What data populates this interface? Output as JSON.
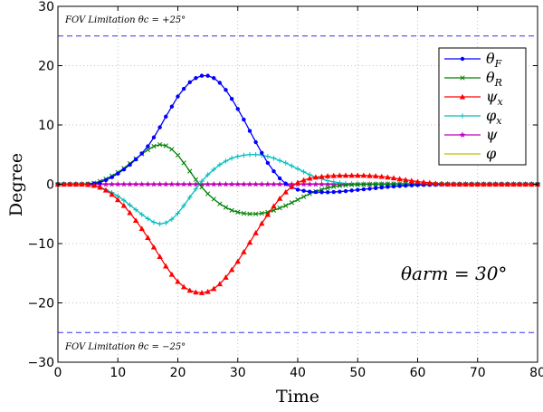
{
  "chart_data": {
    "type": "line",
    "xlabel": "Time",
    "ylabel": "Degree",
    "xlim": [
      0,
      80
    ],
    "ylim": [
      -30,
      30
    ],
    "x_ticks": [
      0,
      10,
      20,
      30,
      40,
      50,
      60,
      70,
      80
    ],
    "y_ticks": [
      -30,
      -20,
      -10,
      0,
      10,
      20,
      30
    ],
    "y_tick_labels": [
      "−30",
      "−20",
      "−10",
      "0",
      "10",
      "20",
      "30"
    ],
    "grid": true,
    "legend_position": "top-right",
    "annotations": {
      "fov_upper": "FOV Limitation θc = +25°",
      "fov_lower": "FOV Limitation θc = −25°",
      "theta_arm": "θarm = 30°"
    },
    "fov_limits": [
      25,
      -25
    ],
    "fov_line_color": "#3333ee",
    "x": [
      0,
      1,
      2,
      3,
      4,
      5,
      6,
      7,
      8,
      9,
      10,
      11,
      12,
      13,
      14,
      15,
      16,
      17,
      18,
      19,
      20,
      21,
      22,
      23,
      24,
      25,
      26,
      27,
      28,
      29,
      30,
      31,
      32,
      33,
      34,
      35,
      36,
      37,
      38,
      39,
      40,
      41,
      42,
      43,
      44,
      45,
      46,
      47,
      48,
      49,
      50,
      51,
      52,
      53,
      54,
      55,
      56,
      57,
      58,
      59,
      60,
      61,
      62,
      63,
      64,
      65,
      66,
      67,
      68,
      69,
      70,
      71,
      72,
      73,
      74,
      75,
      76,
      77,
      78,
      79,
      80
    ],
    "series": [
      {
        "name": "θF",
        "color": "#0000ff",
        "marker": "dot",
        "values": [
          0,
          0,
          0,
          0,
          0,
          0.02,
          0.1,
          0.3,
          0.7,
          1.2,
          1.8,
          2.5,
          3.3,
          4.2,
          5.2,
          6.4,
          7.9,
          9.6,
          11.4,
          13.1,
          14.8,
          16.1,
          17.2,
          17.9,
          18.3,
          18.3,
          17.9,
          17.1,
          15.9,
          14.4,
          12.7,
          10.9,
          9.0,
          7.1,
          5.3,
          3.6,
          2.2,
          1.0,
          0.1,
          -0.5,
          -0.9,
          -1.1,
          -1.25,
          -1.3,
          -1.35,
          -1.35,
          -1.3,
          -1.25,
          -1.15,
          -1.05,
          -0.95,
          -0.85,
          -0.75,
          -0.65,
          -0.55,
          -0.45,
          -0.38,
          -0.3,
          -0.24,
          -0.18,
          -0.13,
          -0.09,
          -0.06,
          -0.04,
          -0.02,
          -0.01,
          0,
          0,
          0,
          0,
          0,
          0,
          0,
          0,
          0,
          0,
          0,
          0,
          0,
          0,
          0
        ]
      },
      {
        "name": "θR",
        "color": "#008000",
        "marker": "x",
        "values": [
          0,
          0,
          0,
          0,
          0,
          0.05,
          0.2,
          0.5,
          0.9,
          1.4,
          2.0,
          2.7,
          3.5,
          4.3,
          5.1,
          5.8,
          6.4,
          6.7,
          6.5,
          5.9,
          4.9,
          3.6,
          2.2,
          0.8,
          -0.5,
          -1.6,
          -2.5,
          -3.3,
          -3.9,
          -4.4,
          -4.7,
          -4.9,
          -5.0,
          -5.0,
          -4.9,
          -4.7,
          -4.4,
          -4.0,
          -3.6,
          -3.1,
          -2.6,
          -2.1,
          -1.6,
          -1.2,
          -0.9,
          -0.6,
          -0.4,
          -0.25,
          -0.15,
          -0.1,
          -0.05,
          -0.02,
          0,
          0.02,
          0.04,
          0.06,
          0.07,
          0.08,
          0.08,
          0.07,
          0.06,
          0.05,
          0.04,
          0.03,
          0.02,
          0.01,
          0,
          0,
          0,
          0,
          0,
          0,
          0,
          0,
          0,
          0,
          0,
          0,
          0,
          0,
          0
        ]
      },
      {
        "name": "ψx",
        "color": "#ff0000",
        "marker": "triangle",
        "values": [
          0,
          0,
          0,
          0,
          0,
          -0.05,
          -0.2,
          -0.5,
          -1.0,
          -1.7,
          -2.6,
          -3.6,
          -4.8,
          -6.1,
          -7.5,
          -9.0,
          -10.6,
          -12.2,
          -13.8,
          -15.2,
          -16.4,
          -17.3,
          -17.9,
          -18.2,
          -18.3,
          -18.1,
          -17.6,
          -16.8,
          -15.7,
          -14.4,
          -13.0,
          -11.4,
          -9.8,
          -8.2,
          -6.6,
          -5.1,
          -3.7,
          -2.4,
          -1.3,
          -0.4,
          0.3,
          0.7,
          1.0,
          1.2,
          1.3,
          1.4,
          1.45,
          1.5,
          1.5,
          1.5,
          1.5,
          1.5,
          1.45,
          1.4,
          1.3,
          1.2,
          1.05,
          0.9,
          0.75,
          0.6,
          0.45,
          0.35,
          0.25,
          0.15,
          0.1,
          0.05,
          0.02,
          0,
          0,
          0,
          0,
          0,
          0,
          0,
          0,
          0,
          0,
          0,
          0,
          0,
          0
        ]
      },
      {
        "name": "φx",
        "color": "#00bfbf",
        "marker": "plus",
        "values": [
          0,
          0,
          0,
          0,
          0,
          -0.05,
          -0.2,
          -0.5,
          -0.9,
          -1.4,
          -2.0,
          -2.7,
          -3.5,
          -4.3,
          -5.1,
          -5.8,
          -6.4,
          -6.7,
          -6.5,
          -5.9,
          -4.9,
          -3.6,
          -2.2,
          -0.8,
          0.5,
          1.6,
          2.5,
          3.3,
          3.9,
          4.4,
          4.7,
          4.9,
          5.0,
          5.0,
          4.9,
          4.7,
          4.4,
          4.0,
          3.6,
          3.1,
          2.6,
          2.1,
          1.6,
          1.2,
          0.9,
          0.6,
          0.4,
          0.25,
          0.15,
          0.1,
          0.05,
          0.02,
          0,
          -0.02,
          -0.04,
          -0.06,
          -0.07,
          -0.08,
          -0.08,
          -0.07,
          -0.06,
          -0.05,
          -0.04,
          -0.03,
          -0.02,
          -0.01,
          0,
          0,
          0,
          0,
          0,
          0,
          0,
          0,
          0,
          0,
          0,
          0,
          0,
          0,
          0
        ]
      },
      {
        "name": "ψ",
        "color": "#bf00bf",
        "marker": "star",
        "values": [
          0,
          0,
          0,
          0,
          0,
          0,
          0,
          0,
          0,
          0,
          0,
          0,
          0,
          0,
          0,
          0,
          0,
          0,
          0,
          0,
          0,
          0,
          0,
          0,
          0,
          0,
          0,
          0,
          0,
          0,
          0,
          0,
          0,
          0,
          0,
          0,
          0,
          0,
          0,
          0,
          0,
          0,
          0,
          0,
          0,
          0,
          0,
          0,
          0,
          0,
          0,
          0,
          0,
          0,
          0,
          0,
          0,
          0,
          0,
          0,
          0,
          0,
          0,
          0,
          0,
          0,
          0,
          0,
          0,
          0,
          0,
          0,
          0,
          0,
          0,
          0,
          0,
          0,
          0,
          0,
          0
        ]
      },
      {
        "name": "φ",
        "color": "#bfbf00",
        "marker": "none",
        "values": [
          0,
          0,
          0,
          0,
          0,
          0,
          0,
          0,
          0,
          0,
          0,
          0,
          0,
          0,
          0,
          0,
          0,
          0,
          0,
          0,
          0,
          0,
          0,
          0,
          0,
          0,
          0,
          0,
          0,
          0,
          0,
          0,
          0,
          0,
          0,
          0,
          0,
          0,
          0,
          0,
          0,
          0,
          0,
          0,
          0,
          0,
          0,
          0,
          0,
          0,
          0,
          0,
          0,
          0,
          0,
          0,
          0,
          0,
          0,
          0,
          0,
          0,
          0,
          0,
          0,
          0,
          0,
          0,
          0,
          0,
          0,
          0,
          0,
          0,
          0,
          0,
          0,
          0,
          0,
          0,
          0
        ]
      }
    ]
  }
}
